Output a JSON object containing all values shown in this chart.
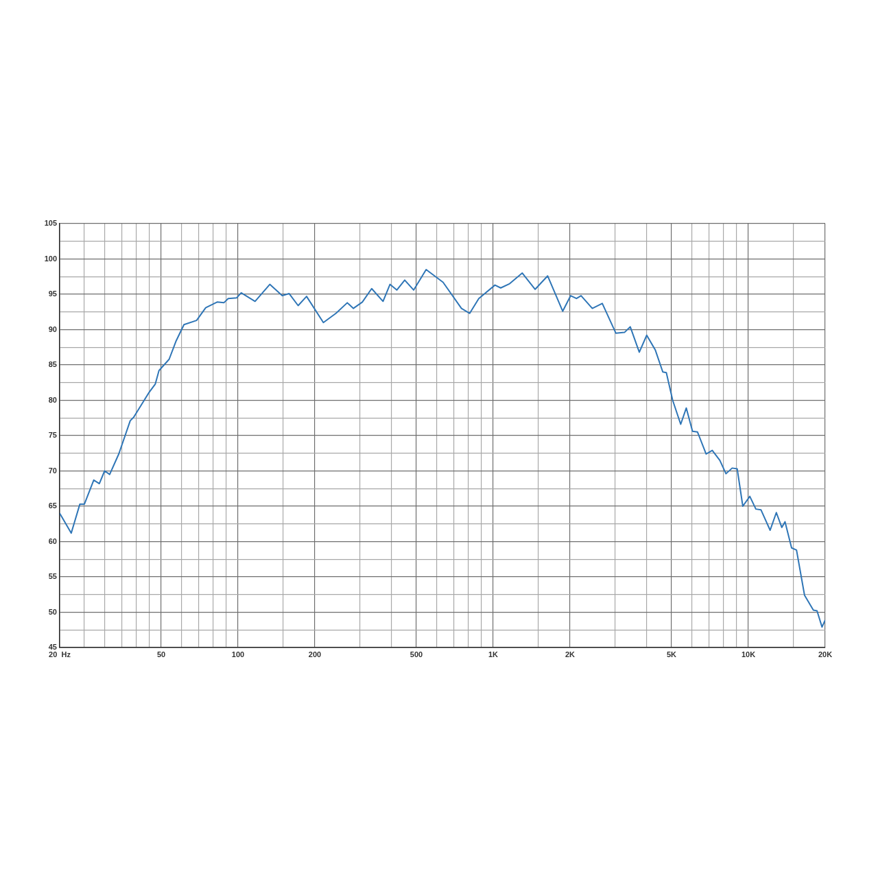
{
  "chart_data": {
    "type": "line",
    "log": "x",
    "grid": true,
    "color": "#2e75b6",
    "xlim": [
      20,
      20000
    ],
    "ylim": [
      45,
      105
    ],
    "xticks": [
      {
        "value": 20,
        "label": "20  Hz"
      },
      {
        "value": 25,
        "label": null
      },
      {
        "value": 30,
        "label": null
      },
      {
        "value": 35,
        "label": null
      },
      {
        "value": 40,
        "label": null
      },
      {
        "value": 45,
        "label": null
      },
      50,
      {
        "value": 60,
        "label": null
      },
      {
        "value": 70,
        "label": null
      },
      {
        "value": 80,
        "label": null
      },
      {
        "value": 90,
        "label": null
      },
      100,
      {
        "value": 150,
        "label": null
      },
      200,
      {
        "value": 300,
        "label": null
      },
      {
        "value": 400,
        "label": null
      },
      500,
      {
        "value": 600,
        "label": null
      },
      {
        "value": 700,
        "label": null
      },
      {
        "value": 800,
        "label": null
      },
      {
        "value": 900,
        "label": null
      },
      {
        "value": 1000,
        "label": "1K"
      },
      {
        "value": 1500,
        "label": null
      },
      {
        "value": 2000,
        "label": "2K"
      },
      {
        "value": 3000,
        "label": null
      },
      {
        "value": 4000,
        "label": null
      },
      {
        "value": 5000,
        "label": "5K"
      },
      {
        "value": 6000,
        "label": null
      },
      {
        "value": 7000,
        "label": null
      },
      {
        "value": 8000,
        "label": null
      },
      {
        "value": 9000,
        "label": null
      },
      {
        "value": 10000,
        "label": "10K"
      },
      {
        "value": 15000,
        "label": null
      },
      {
        "value": 20000,
        "label": "20K"
      }
    ],
    "yticks": [
      45,
      {
        "value": 47.5,
        "label": null
      },
      50,
      {
        "value": 52.5,
        "label": null
      },
      55,
      {
        "value": 57.5,
        "label": null
      },
      60,
      {
        "value": 62.5,
        "label": null
      },
      65,
      {
        "value": 67.5,
        "label": null
      },
      70,
      {
        "value": 72.5,
        "label": null
      },
      75,
      {
        "value": 77.5,
        "label": null
      },
      80,
      {
        "value": 82.5,
        "label": null
      },
      85,
      {
        "value": 87.5,
        "label": null
      },
      90,
      {
        "value": 92.5,
        "label": null
      },
      95,
      {
        "value": 97.5,
        "label": null
      },
      100,
      {
        "value": 102.5,
        "label": null
      },
      105
    ],
    "x": [
      20,
      22.2,
      24,
      25,
      27.2,
      28.6,
      30,
      31.4,
      34.1,
      37.8,
      39,
      44.6,
      47.4,
      49,
      53.7,
      57.2,
      61.4,
      68.8,
      74.7,
      82.8,
      88,
      91.5,
      98.8,
      102.9,
      116.6,
      133.2,
      149,
      158.5,
      172,
      185.6,
      216,
      242,
      268,
      283,
      307,
      334,
      370,
      394,
      419,
      450,
      488,
      546,
      636,
      751,
      809,
      878,
      1016,
      1070,
      1160,
      1300,
      1460,
      1634,
      1872,
      2012,
      2120,
      2210,
      2446,
      2676,
      3024,
      3270,
      3444,
      3737,
      3996,
      4319,
      4620,
      4770,
      5050,
      5430,
      5710,
      6040,
      6320,
      6830,
      7220,
      7730,
      8170,
      8640,
      9040,
      9510,
      10130,
      10700,
      11200,
      12170,
      12870,
      13520,
      13920,
      14770,
      15440,
      16600,
      17980,
      18580,
      19440,
      20000
    ],
    "values": [
      64.0,
      61.2,
      65.3,
      65.3,
      68.7,
      68.2,
      70.0,
      69.5,
      72.4,
      77.1,
      77.6,
      81.0,
      82.3,
      84.2,
      85.8,
      88.4,
      90.7,
      91.3,
      93.1,
      93.9,
      93.8,
      94.4,
      94.5,
      95.2,
      94.0,
      96.4,
      94.8,
      95.1,
      93.4,
      94.7,
      91.0,
      92.3,
      93.8,
      93.0,
      93.9,
      95.8,
      94.0,
      96.4,
      95.6,
      97.0,
      95.6,
      98.5,
      96.7,
      93.0,
      92.3,
      94.4,
      96.3,
      95.9,
      96.5,
      98.0,
      95.7,
      97.6,
      92.6,
      94.8,
      94.4,
      94.8,
      93.0,
      93.7,
      89.5,
      89.6,
      90.4,
      86.8,
      89.2,
      87.1,
      84.0,
      83.9,
      80.0,
      76.6,
      78.9,
      75.6,
      75.5,
      72.4,
      72.9,
      71.5,
      69.6,
      70.4,
      70.3,
      65.0,
      66.4,
      64.6,
      64.5,
      61.6,
      64.1,
      62.0,
      62.8,
      59.1,
      58.8,
      52.4,
      50.3,
      50.2,
      47.9,
      48.9
    ]
  }
}
